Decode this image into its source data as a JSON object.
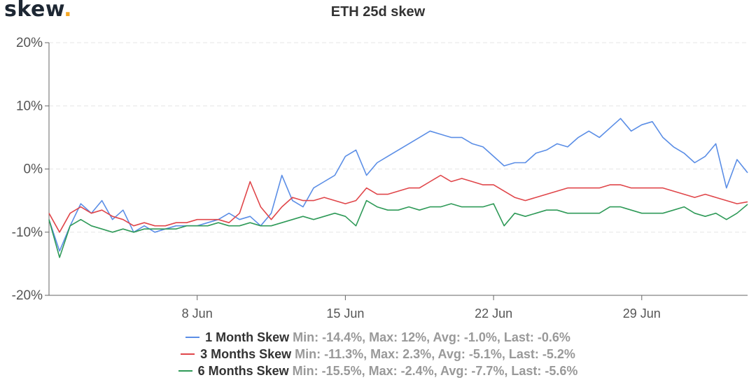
{
  "logo": {
    "text": "skew",
    "dot": "."
  },
  "chart_data": {
    "type": "line",
    "title": "ETH 25d skew",
    "ylim": [
      -20,
      20
    ],
    "yticks": [
      {
        "value": 20,
        "label": "20%"
      },
      {
        "value": 10,
        "label": "10%"
      },
      {
        "value": 0,
        "label": "0%"
      },
      {
        "value": -10,
        "label": "-10%"
      },
      {
        "value": -20,
        "label": "-20%"
      }
    ],
    "xlim": [
      "2020-06-01",
      "2020-07-04"
    ],
    "xticks": [
      {
        "value": "2020-06-08",
        "label": "8 Jun"
      },
      {
        "value": "2020-06-15",
        "label": "15 Jun"
      },
      {
        "value": "2020-06-22",
        "label": "22 Jun"
      },
      {
        "value": "2020-06-29",
        "label": "29 Jun"
      }
    ],
    "grid": true,
    "legend_position": "bottom",
    "series": [
      {
        "name": "1 Month Skew",
        "color": "#5b8ee6",
        "stats": "Min: -14.4%, Max: 12%, Avg: -1.0%, Last: -0.6%",
        "points": [
          [
            "2020-06-01",
            -8
          ],
          [
            "2020-06-01T12:00",
            -13
          ],
          [
            "2020-06-02",
            -9
          ],
          [
            "2020-06-02T12:00",
            -5.5
          ],
          [
            "2020-06-03",
            -7
          ],
          [
            "2020-06-03T12:00",
            -5
          ],
          [
            "2020-06-04",
            -8
          ],
          [
            "2020-06-04T12:00",
            -6.5
          ],
          [
            "2020-06-05",
            -10
          ],
          [
            "2020-06-05T12:00",
            -9
          ],
          [
            "2020-06-06",
            -10
          ],
          [
            "2020-06-06T12:00",
            -9.5
          ],
          [
            "2020-06-07",
            -9
          ],
          [
            "2020-06-07T12:00",
            -9
          ],
          [
            "2020-06-08",
            -9
          ],
          [
            "2020-06-08T12:00",
            -8.5
          ],
          [
            "2020-06-09",
            -8
          ],
          [
            "2020-06-09T12:00",
            -7
          ],
          [
            "2020-06-10",
            -8
          ],
          [
            "2020-06-10T12:00",
            -7.5
          ],
          [
            "2020-06-11",
            -9
          ],
          [
            "2020-06-11T12:00",
            -7
          ],
          [
            "2020-06-12",
            -1
          ],
          [
            "2020-06-12T12:00",
            -5
          ],
          [
            "2020-06-13",
            -6
          ],
          [
            "2020-06-13T12:00",
            -3
          ],
          [
            "2020-06-14",
            -2
          ],
          [
            "2020-06-14T12:00",
            -1
          ],
          [
            "2020-06-15",
            2
          ],
          [
            "2020-06-15T12:00",
            3
          ],
          [
            "2020-06-16",
            -1
          ],
          [
            "2020-06-16T12:00",
            1
          ],
          [
            "2020-06-17",
            2
          ],
          [
            "2020-06-17T12:00",
            3
          ],
          [
            "2020-06-18",
            4
          ],
          [
            "2020-06-18T12:00",
            5
          ],
          [
            "2020-06-19",
            6
          ],
          [
            "2020-06-19T12:00",
            5.5
          ],
          [
            "2020-06-20",
            5
          ],
          [
            "2020-06-20T12:00",
            5
          ],
          [
            "2020-06-21",
            4
          ],
          [
            "2020-06-21T12:00",
            3.5
          ],
          [
            "2020-06-22",
            2
          ],
          [
            "2020-06-22T12:00",
            0.5
          ],
          [
            "2020-06-23",
            1
          ],
          [
            "2020-06-23T12:00",
            1
          ],
          [
            "2020-06-24",
            2.5
          ],
          [
            "2020-06-24T12:00",
            3
          ],
          [
            "2020-06-25",
            4
          ],
          [
            "2020-06-25T12:00",
            3.5
          ],
          [
            "2020-06-26",
            5
          ],
          [
            "2020-06-26T12:00",
            6
          ],
          [
            "2020-06-27",
            5
          ],
          [
            "2020-06-27T12:00",
            6.5
          ],
          [
            "2020-06-28",
            8
          ],
          [
            "2020-06-28T12:00",
            6
          ],
          [
            "2020-06-29",
            7
          ],
          [
            "2020-06-29T12:00",
            7.5
          ],
          [
            "2020-06-30",
            5
          ],
          [
            "2020-06-30T12:00",
            3.5
          ],
          [
            "2020-07-01",
            2.5
          ],
          [
            "2020-07-01T12:00",
            1
          ],
          [
            "2020-07-02",
            2
          ],
          [
            "2020-07-02T12:00",
            4
          ],
          [
            "2020-07-03",
            -3
          ],
          [
            "2020-07-03T12:00",
            1.5
          ],
          [
            "2020-07-04",
            -0.6
          ]
        ]
      },
      {
        "name": "3 Months Skew",
        "color": "#e0464a",
        "stats": "Min: -11.3%, Max: 2.3%, Avg: -5.1%, Last: -5.2%",
        "points": [
          [
            "2020-06-01",
            -7
          ],
          [
            "2020-06-01T12:00",
            -10
          ],
          [
            "2020-06-02",
            -7
          ],
          [
            "2020-06-02T12:00",
            -6
          ],
          [
            "2020-06-03",
            -7
          ],
          [
            "2020-06-03T12:00",
            -6.5
          ],
          [
            "2020-06-04",
            -7.5
          ],
          [
            "2020-06-04T12:00",
            -8
          ],
          [
            "2020-06-05",
            -9
          ],
          [
            "2020-06-05T12:00",
            -8.5
          ],
          [
            "2020-06-06",
            -9
          ],
          [
            "2020-06-06T12:00",
            -9
          ],
          [
            "2020-06-07",
            -8.5
          ],
          [
            "2020-06-07T12:00",
            -8.5
          ],
          [
            "2020-06-08",
            -8
          ],
          [
            "2020-06-08T12:00",
            -8
          ],
          [
            "2020-06-09",
            -8
          ],
          [
            "2020-06-09T12:00",
            -8.5
          ],
          [
            "2020-06-10",
            -7
          ],
          [
            "2020-06-10T12:00",
            -2
          ],
          [
            "2020-06-11",
            -6
          ],
          [
            "2020-06-11T12:00",
            -8
          ],
          [
            "2020-06-12",
            -6
          ],
          [
            "2020-06-12T12:00",
            -4.5
          ],
          [
            "2020-06-13",
            -5
          ],
          [
            "2020-06-13T12:00",
            -5
          ],
          [
            "2020-06-14",
            -4.5
          ],
          [
            "2020-06-14T12:00",
            -5
          ],
          [
            "2020-06-15",
            -5.5
          ],
          [
            "2020-06-15T12:00",
            -5
          ],
          [
            "2020-06-16",
            -3
          ],
          [
            "2020-06-16T12:00",
            -4
          ],
          [
            "2020-06-17",
            -4
          ],
          [
            "2020-06-17T12:00",
            -3.5
          ],
          [
            "2020-06-18",
            -3
          ],
          [
            "2020-06-18T12:00",
            -3
          ],
          [
            "2020-06-19",
            -2
          ],
          [
            "2020-06-19T12:00",
            -1
          ],
          [
            "2020-06-20",
            -2
          ],
          [
            "2020-06-20T12:00",
            -1.5
          ],
          [
            "2020-06-21",
            -2
          ],
          [
            "2020-06-21T12:00",
            -2.5
          ],
          [
            "2020-06-22",
            -2.5
          ],
          [
            "2020-06-22T12:00",
            -3.5
          ],
          [
            "2020-06-23",
            -4.5
          ],
          [
            "2020-06-23T12:00",
            -5
          ],
          [
            "2020-06-24",
            -4.5
          ],
          [
            "2020-06-24T12:00",
            -4
          ],
          [
            "2020-06-25",
            -3.5
          ],
          [
            "2020-06-25T12:00",
            -3
          ],
          [
            "2020-06-26",
            -3
          ],
          [
            "2020-06-26T12:00",
            -3
          ],
          [
            "2020-06-27",
            -3
          ],
          [
            "2020-06-27T12:00",
            -2.5
          ],
          [
            "2020-06-28",
            -2.5
          ],
          [
            "2020-06-28T12:00",
            -3
          ],
          [
            "2020-06-29",
            -3
          ],
          [
            "2020-06-29T12:00",
            -3
          ],
          [
            "2020-06-30",
            -3
          ],
          [
            "2020-06-30T12:00",
            -3.5
          ],
          [
            "2020-07-01",
            -4
          ],
          [
            "2020-07-01T12:00",
            -4.5
          ],
          [
            "2020-07-02",
            -4
          ],
          [
            "2020-07-02T12:00",
            -4.5
          ],
          [
            "2020-07-03",
            -5
          ],
          [
            "2020-07-03T12:00",
            -5.5
          ],
          [
            "2020-07-04",
            -5.2
          ]
        ]
      },
      {
        "name": "6 Months Skew",
        "color": "#2f9a58",
        "stats": "Min: -15.5%, Max: -2.4%, Avg: -7.7%, Last: -5.6%",
        "points": [
          [
            "2020-06-01",
            -8
          ],
          [
            "2020-06-01T12:00",
            -14
          ],
          [
            "2020-06-02",
            -9
          ],
          [
            "2020-06-02T12:00",
            -8
          ],
          [
            "2020-06-03",
            -9
          ],
          [
            "2020-06-03T12:00",
            -9.5
          ],
          [
            "2020-06-04",
            -10
          ],
          [
            "2020-06-04T12:00",
            -9.5
          ],
          [
            "2020-06-05",
            -10
          ],
          [
            "2020-06-05T12:00",
            -9.5
          ],
          [
            "2020-06-06",
            -9.5
          ],
          [
            "2020-06-06T12:00",
            -9.5
          ],
          [
            "2020-06-07",
            -9.5
          ],
          [
            "2020-06-07T12:00",
            -9
          ],
          [
            "2020-06-08",
            -9
          ],
          [
            "2020-06-08T12:00",
            -9
          ],
          [
            "2020-06-09",
            -8.5
          ],
          [
            "2020-06-09T12:00",
            -9
          ],
          [
            "2020-06-10",
            -9
          ],
          [
            "2020-06-10T12:00",
            -8.5
          ],
          [
            "2020-06-11",
            -9
          ],
          [
            "2020-06-11T12:00",
            -9
          ],
          [
            "2020-06-12",
            -8.5
          ],
          [
            "2020-06-12T12:00",
            -8
          ],
          [
            "2020-06-13",
            -7.5
          ],
          [
            "2020-06-13T12:00",
            -8
          ],
          [
            "2020-06-14",
            -7.5
          ],
          [
            "2020-06-14T12:00",
            -7
          ],
          [
            "2020-06-15",
            -7.5
          ],
          [
            "2020-06-15T12:00",
            -9
          ],
          [
            "2020-06-16",
            -5
          ],
          [
            "2020-06-16T12:00",
            -6
          ],
          [
            "2020-06-17",
            -6.5
          ],
          [
            "2020-06-17T12:00",
            -6.5
          ],
          [
            "2020-06-18",
            -6
          ],
          [
            "2020-06-18T12:00",
            -6.5
          ],
          [
            "2020-06-19",
            -6
          ],
          [
            "2020-06-19T12:00",
            -6
          ],
          [
            "2020-06-20",
            -5.5
          ],
          [
            "2020-06-20T12:00",
            -6
          ],
          [
            "2020-06-21",
            -6
          ],
          [
            "2020-06-21T12:00",
            -6
          ],
          [
            "2020-06-22",
            -5.5
          ],
          [
            "2020-06-22T12:00",
            -9
          ],
          [
            "2020-06-23",
            -7
          ],
          [
            "2020-06-23T12:00",
            -7.5
          ],
          [
            "2020-06-24",
            -7
          ],
          [
            "2020-06-24T12:00",
            -6.5
          ],
          [
            "2020-06-25",
            -6.5
          ],
          [
            "2020-06-25T12:00",
            -7
          ],
          [
            "2020-06-26",
            -7
          ],
          [
            "2020-06-26T12:00",
            -7
          ],
          [
            "2020-06-27",
            -7
          ],
          [
            "2020-06-27T12:00",
            -6
          ],
          [
            "2020-06-28",
            -6
          ],
          [
            "2020-06-28T12:00",
            -6.5
          ],
          [
            "2020-06-29",
            -7
          ],
          [
            "2020-06-29T12:00",
            -7
          ],
          [
            "2020-06-30",
            -7
          ],
          [
            "2020-06-30T12:00",
            -6.5
          ],
          [
            "2020-07-01",
            -6
          ],
          [
            "2020-07-01T12:00",
            -7
          ],
          [
            "2020-07-02",
            -7.5
          ],
          [
            "2020-07-02T12:00",
            -7
          ],
          [
            "2020-07-03",
            -8
          ],
          [
            "2020-07-03T12:00",
            -7
          ],
          [
            "2020-07-04",
            -5.6
          ]
        ]
      }
    ]
  }
}
